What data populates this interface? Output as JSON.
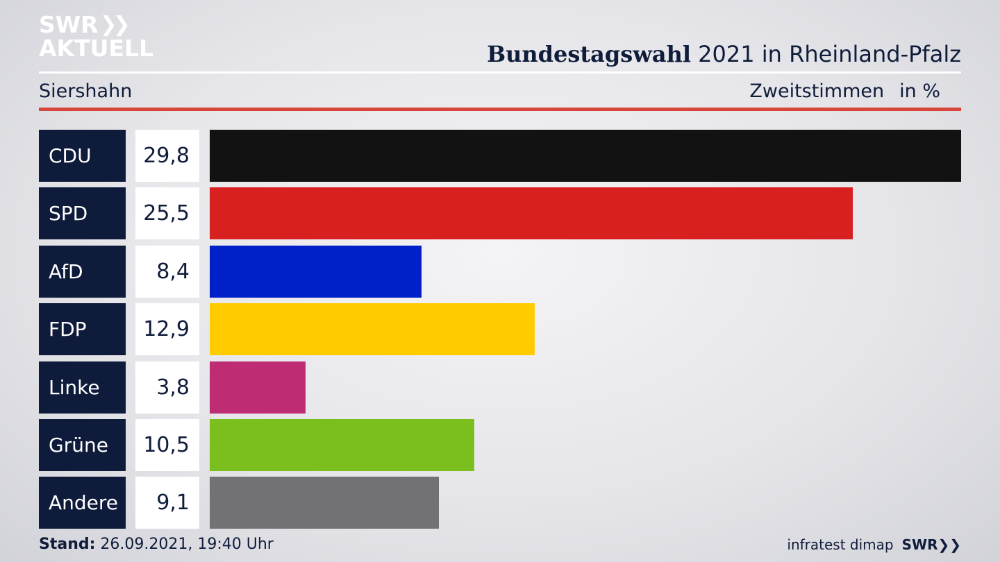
{
  "logo": {
    "line1": "SWR",
    "line2": "AKTUELL",
    "icon": "double-chevron-right-icon"
  },
  "header": {
    "title_bold": "Bundestagswahl",
    "title_rest": " 2021 in Rheinland-Pfalz",
    "location": "Siershahn",
    "measure": "Zweitstimmen",
    "unit": "in %"
  },
  "chart_data": {
    "type": "bar",
    "orientation": "horizontal",
    "categories": [
      "CDU",
      "SPD",
      "AfD",
      "FDP",
      "Linke",
      "Grüne",
      "Andere"
    ],
    "values": [
      29.8,
      25.5,
      8.4,
      12.9,
      3.8,
      10.5,
      9.1
    ],
    "value_labels": [
      "29,8",
      "25,5",
      "8,4",
      "12,9",
      "3,8",
      "10,5",
      "9,1"
    ],
    "colors": [
      "#121212",
      "#d82020",
      "#0021c8",
      "#ffcc00",
      "#be2d73",
      "#7bbf1f",
      "#727274"
    ]
  },
  "footer": {
    "stand_label": "Stand:",
    "stand_value": " 26.09.2021, 19:40 Uhr",
    "source": "infratest dimap",
    "broadcaster": "SWR"
  },
  "colors": {
    "navy": "#0e1b3a",
    "accent_red": "#d7463b"
  }
}
